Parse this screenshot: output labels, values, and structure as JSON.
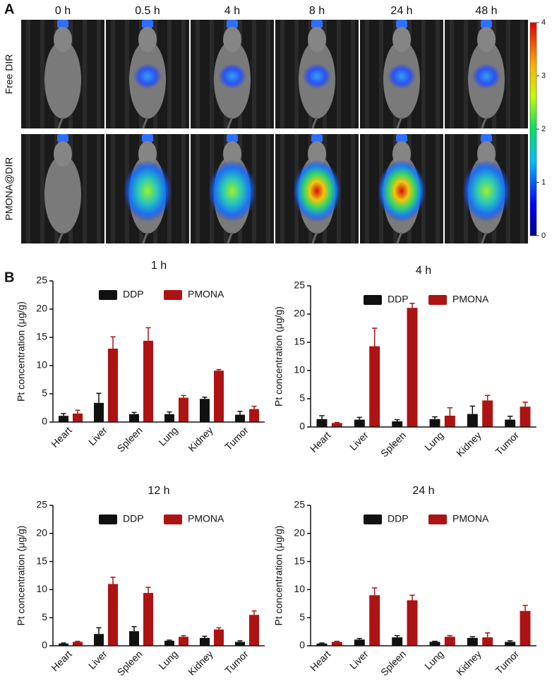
{
  "panel_a": {
    "label": "A",
    "times": [
      "0 h",
      "0.5 h",
      "4 h",
      "8 h",
      "24 h",
      "48 h"
    ],
    "rows": [
      "Free DIR",
      "PMONA@DIR"
    ],
    "colorbar": {
      "lim": [
        0,
        4
      ],
      "ticks": [
        0,
        1,
        2,
        3,
        4
      ]
    }
  },
  "panel_b_label": "B",
  "chart_data": [
    {
      "type": "bar",
      "title": "1 h",
      "y_label": "Pt concentration (μg/g)",
      "categories": [
        "Heart",
        "Liver",
        "Spleen",
        "Lung",
        "Kidney",
        "Tumor"
      ],
      "ylim": [
        0,
        25
      ],
      "yticks": [
        0,
        5,
        10,
        15,
        20,
        25
      ],
      "legend": "top",
      "series": [
        {
          "name": "DDP",
          "color": "#111111",
          "values": [
            1.1,
            3.4,
            1.4,
            1.4,
            4.1,
            1.3
          ],
          "errors": [
            0.4,
            1.7,
            0.3,
            0.4,
            0.3,
            0.6
          ]
        },
        {
          "name": "PMONA",
          "color": "#ad1313",
          "values": [
            1.5,
            13.0,
            14.4,
            4.3,
            9.1,
            2.3
          ],
          "errors": [
            0.6,
            2.1,
            2.3,
            0.4,
            0.2,
            0.5
          ]
        }
      ]
    },
    {
      "type": "bar",
      "title": "4 h",
      "y_label": "Pt concentration (μg/g)",
      "categories": [
        "Heart",
        "Liver",
        "Spleen",
        "Lung",
        "Kidney",
        "Tumor"
      ],
      "ylim": [
        0,
        25
      ],
      "yticks": [
        0,
        5,
        10,
        15,
        20,
        25
      ],
      "legend": "top",
      "series": [
        {
          "name": "DDP",
          "color": "#111111",
          "values": [
            1.4,
            1.3,
            1.0,
            1.4,
            2.3,
            1.3
          ],
          "errors": [
            0.6,
            0.4,
            0.3,
            0.4,
            1.4,
            0.6
          ]
        },
        {
          "name": "PMONA",
          "color": "#ad1313",
          "values": [
            0.7,
            14.3,
            21.1,
            2.0,
            4.7,
            3.6
          ],
          "errors": [
            0.1,
            3.2,
            0.8,
            1.4,
            0.9,
            0.8
          ]
        }
      ]
    },
    {
      "type": "bar",
      "title": "12 h",
      "y_label": "Pt concentration (μg/g)",
      "categories": [
        "Heart",
        "Liver",
        "Spleen",
        "Lung",
        "Kidney",
        "Tumor"
      ],
      "ylim": [
        0,
        25
      ],
      "yticks": [
        0,
        5,
        10,
        15,
        20,
        25
      ],
      "legend": "top",
      "series": [
        {
          "name": "DDP",
          "color": "#111111",
          "values": [
            0.4,
            2.1,
            2.6,
            0.9,
            1.4,
            0.7
          ],
          "errors": [
            0.1,
            1.1,
            0.8,
            0.1,
            0.3,
            0.2
          ]
        },
        {
          "name": "PMONA",
          "color": "#ad1313",
          "values": [
            0.7,
            11.0,
            9.4,
            1.6,
            2.9,
            5.5
          ],
          "errors": [
            0.1,
            1.2,
            1.0,
            0.2,
            0.3,
            0.7
          ]
        }
      ]
    },
    {
      "type": "bar",
      "title": "24 h",
      "y_label": "Pt concentration (μg/g)",
      "categories": [
        "Heart",
        "Liver",
        "Spleen",
        "Lung",
        "Kidney",
        "Tumor"
      ],
      "ylim": [
        0,
        25
      ],
      "yticks": [
        0,
        5,
        10,
        15,
        20,
        25
      ],
      "legend": "top",
      "series": [
        {
          "name": "DDP",
          "color": "#111111",
          "values": [
            0.4,
            1.1,
            1.5,
            0.7,
            1.4,
            0.7
          ],
          "errors": [
            0.1,
            0.2,
            0.3,
            0.1,
            0.2,
            0.2
          ]
        },
        {
          "name": "PMONA",
          "color": "#ad1313",
          "values": [
            0.7,
            9.0,
            8.1,
            1.6,
            1.5,
            6.2
          ],
          "errors": [
            0.1,
            1.3,
            0.9,
            0.2,
            0.8,
            1.0
          ]
        }
      ]
    }
  ]
}
